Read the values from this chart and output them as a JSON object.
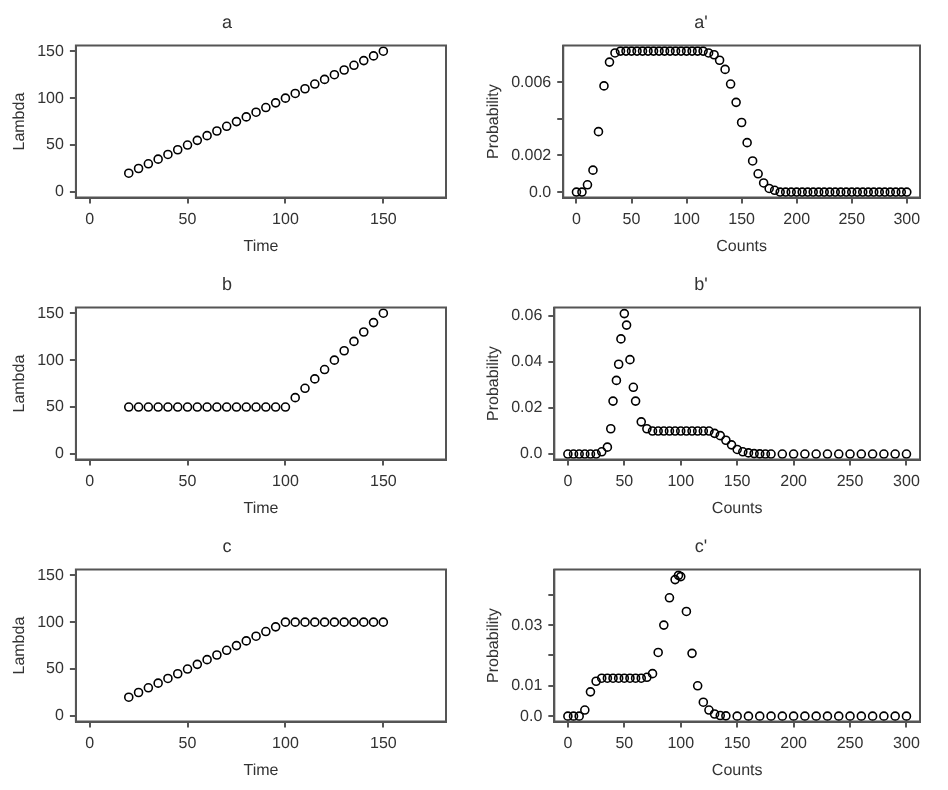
{
  "chart_data": [
    {
      "type": "scatter",
      "title": "a",
      "xlabel": "Time",
      "ylabel": "Lambda",
      "color": "#000000",
      "marker": "circle",
      "grid": false,
      "legend": false,
      "xlim": [
        -7,
        182
      ],
      "ylim": [
        -6,
        156
      ],
      "xticks": [
        0,
        50,
        100,
        150
      ],
      "yticks": [
        0,
        50,
        100,
        150
      ],
      "x": [
        20,
        25,
        30,
        35,
        40,
        45,
        50,
        55,
        60,
        65,
        70,
        75,
        80,
        85,
        90,
        95,
        100,
        105,
        110,
        115,
        120,
        125,
        130,
        135,
        140,
        145,
        150
      ],
      "values": [
        20,
        25,
        30,
        35,
        40,
        45,
        50,
        55,
        60,
        65,
        70,
        75,
        80,
        85,
        90,
        95,
        100,
        105,
        110,
        115,
        120,
        125,
        130,
        135,
        140,
        145,
        150
      ]
    },
    {
      "type": "scatter",
      "title": "a'",
      "xlabel": "Counts",
      "ylabel": "Probability",
      "color": "#000000",
      "marker": "circle",
      "grid": false,
      "legend": false,
      "xlim": [
        -12,
        312
      ],
      "ylim": [
        -0.0003,
        0.008
      ],
      "xticks": [
        0,
        50,
        100,
        150,
        200,
        250,
        300
      ],
      "yticks": [
        {
          "value": 0,
          "label": "0.0"
        },
        0.002,
        {
          "value": 0.004,
          "label": null
        },
        0.006
      ],
      "x": [
        0,
        5,
        10,
        15,
        20,
        25,
        30,
        35,
        40,
        45,
        50,
        55,
        60,
        65,
        70,
        75,
        80,
        85,
        90,
        95,
        100,
        105,
        110,
        115,
        120,
        125,
        130,
        135,
        140,
        145,
        150,
        155,
        160,
        165,
        170,
        175,
        180,
        185,
        190,
        195,
        200,
        205,
        210,
        215,
        220,
        225,
        230,
        235,
        240,
        245,
        250,
        255,
        260,
        265,
        270,
        275,
        280,
        285,
        290,
        295,
        300
      ],
      "values": [
        0,
        0,
        0.0004,
        0.0012,
        0.0033,
        0.0058,
        0.0071,
        0.0076,
        0.0077,
        0.0077,
        0.0077,
        0.0077,
        0.0077,
        0.0077,
        0.0077,
        0.0077,
        0.0077,
        0.0077,
        0.0077,
        0.0077,
        0.0077,
        0.0077,
        0.0077,
        0.0077,
        0.0076,
        0.0075,
        0.0072,
        0.0067,
        0.0059,
        0.0049,
        0.0038,
        0.0027,
        0.0017,
        0.001,
        0.0005,
        0.0002,
        0.0001,
        0,
        0,
        0,
        0,
        0,
        0,
        0,
        0,
        0,
        0,
        0,
        0,
        0,
        0,
        0,
        0,
        0,
        0,
        0,
        0,
        0,
        0,
        0,
        0
      ]
    },
    {
      "type": "scatter",
      "title": "b",
      "xlabel": "Time",
      "ylabel": "Lambda",
      "color": "#000000",
      "marker": "circle",
      "grid": false,
      "legend": false,
      "xlim": [
        -7,
        182
      ],
      "ylim": [
        -6,
        156
      ],
      "xticks": [
        0,
        50,
        100,
        150
      ],
      "yticks": [
        0,
        50,
        100,
        150
      ],
      "x": [
        20,
        25,
        30,
        35,
        40,
        45,
        50,
        55,
        60,
        65,
        70,
        75,
        80,
        85,
        90,
        95,
        100,
        105,
        110,
        115,
        120,
        125,
        130,
        135,
        140,
        145,
        150
      ],
      "values": [
        50,
        50,
        50,
        50,
        50,
        50,
        50,
        50,
        50,
        50,
        50,
        50,
        50,
        50,
        50,
        50,
        50,
        60,
        70,
        80,
        90,
        100,
        110,
        120,
        130,
        140,
        150
      ]
    },
    {
      "type": "scatter",
      "title": "b'",
      "xlabel": "Counts",
      "ylabel": "Probability",
      "color": "#000000",
      "marker": "circle",
      "grid": false,
      "legend": false,
      "xlim": [
        -12,
        312
      ],
      "ylim": [
        -0.0024,
        0.0636
      ],
      "xticks": [
        0,
        50,
        100,
        150,
        200,
        250,
        300
      ],
      "yticks": [
        {
          "value": 0,
          "label": "0.0"
        },
        0.02,
        0.04,
        0.06
      ],
      "x": [
        0,
        5,
        10,
        15,
        20,
        25,
        30,
        35,
        38,
        40,
        43,
        45,
        47,
        50,
        52,
        55,
        58,
        60,
        65,
        70,
        75,
        80,
        85,
        90,
        95,
        100,
        105,
        110,
        115,
        120,
        125,
        130,
        135,
        140,
        145,
        150,
        155,
        160,
        165,
        170,
        175,
        180,
        190,
        200,
        210,
        220,
        230,
        240,
        250,
        260,
        270,
        280,
        290,
        300
      ],
      "values": [
        0,
        0,
        0,
        0,
        0,
        0,
        0.001,
        0.003,
        0.011,
        0.023,
        0.032,
        0.039,
        0.05,
        0.061,
        0.056,
        0.041,
        0.029,
        0.023,
        0.014,
        0.011,
        0.01,
        0.01,
        0.01,
        0.01,
        0.01,
        0.01,
        0.01,
        0.01,
        0.01,
        0.01,
        0.01,
        0.009,
        0.008,
        0.006,
        0.004,
        0.002,
        0.001,
        0.0005,
        0.0002,
        0.0001,
        0,
        0,
        0,
        0,
        0,
        0,
        0,
        0,
        0,
        0,
        0,
        0,
        0,
        0
      ]
    },
    {
      "type": "scatter",
      "title": "c",
      "xlabel": "Time",
      "ylabel": "Lambda",
      "color": "#000000",
      "marker": "circle",
      "grid": false,
      "legend": false,
      "xlim": [
        -7,
        182
      ],
      "ylim": [
        -6,
        156
      ],
      "xticks": [
        0,
        50,
        100,
        150
      ],
      "yticks": [
        0,
        50,
        100,
        150
      ],
      "x": [
        20,
        25,
        30,
        35,
        40,
        45,
        50,
        55,
        60,
        65,
        70,
        75,
        80,
        85,
        90,
        95,
        100,
        105,
        110,
        115,
        120,
        125,
        130,
        135,
        140,
        145,
        150
      ],
      "values": [
        20,
        25,
        30,
        35,
        40,
        45,
        50,
        55,
        60,
        65,
        70,
        75,
        80,
        85,
        90,
        95,
        100,
        100,
        100,
        100,
        100,
        100,
        100,
        100,
        100,
        100,
        100
      ]
    },
    {
      "type": "scatter",
      "title": "c'",
      "xlabel": "Counts",
      "ylabel": "Probability",
      "color": "#000000",
      "marker": "circle",
      "grid": false,
      "legend": false,
      "xlim": [
        -12,
        312
      ],
      "ylim": [
        -0.0018,
        0.0483
      ],
      "xticks": [
        0,
        50,
        100,
        150,
        200,
        250,
        300
      ],
      "yticks": [
        {
          "value": 0,
          "label": "0.0"
        },
        0.01,
        {
          "value": 0.02,
          "label": null
        },
        0.03,
        {
          "value": 0.04,
          "label": null
        }
      ],
      "x": [
        0,
        5,
        10,
        15,
        20,
        25,
        30,
        35,
        40,
        45,
        50,
        55,
        60,
        65,
        70,
        75,
        80,
        85,
        90,
        95,
        98,
        100,
        105,
        110,
        115,
        120,
        125,
        130,
        135,
        140,
        150,
        160,
        170,
        180,
        190,
        200,
        210,
        220,
        230,
        240,
        250,
        260,
        270,
        280,
        290,
        300
      ],
      "values": [
        0,
        0,
        0,
        0.002,
        0.008,
        0.0115,
        0.0125,
        0.0125,
        0.0125,
        0.0125,
        0.0125,
        0.0125,
        0.0125,
        0.0125,
        0.0128,
        0.014,
        0.021,
        0.03,
        0.039,
        0.045,
        0.0464,
        0.046,
        0.0345,
        0.0207,
        0.01,
        0.0046,
        0.002,
        0.0007,
        0.0002,
        0.0001,
        0,
        0,
        0,
        0,
        0,
        0,
        0,
        0,
        0,
        0,
        0,
        0,
        0,
        0,
        0,
        0
      ]
    }
  ]
}
